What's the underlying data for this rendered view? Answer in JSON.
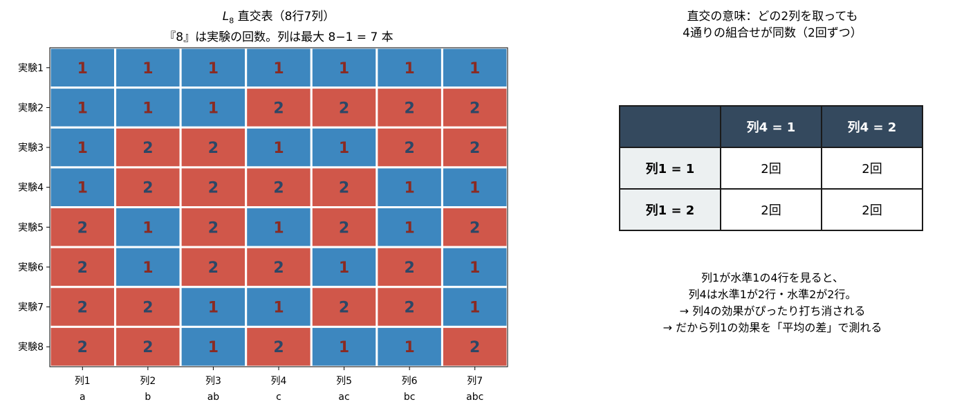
{
  "left": {
    "title_line1_italic": "L",
    "title_line1_sub": "8",
    "title_line1_rest": " 直交表（8行7列）",
    "title_line2": "『8』は実験の回数。列は最大 8−1 = 7 本"
  },
  "right": {
    "title_line1": "直交の意味：どの2列を取っても",
    "title_line2": "4通りの組合せが同数（2回ずつ）",
    "table": {
      "col_headers": [
        "列4 = 1",
        "列4 = 2"
      ],
      "rows": [
        {
          "label": "列1 = 1",
          "cells": [
            "2回",
            "2回"
          ]
        },
        {
          "label": "列1 = 2",
          "cells": [
            "2回",
            "2回"
          ]
        }
      ]
    },
    "note_lines": [
      "列1が水準1の4行を見ると、",
      "列4は水準1が2行・水準2が2行。",
      "→ 列4の効果がぴったり打ち消される",
      "→ だから列1の効果を「平均の差」で測れる"
    ]
  },
  "colors": {
    "level1": "#3d87bf",
    "level2": "#d0574a",
    "text_on_level1": "#8a2a22",
    "text_on_level2": "#2c4766",
    "header_dark": "#34495e",
    "header_light": "#ecf0f1"
  },
  "chart_data": {
    "type": "heatmap",
    "rows": [
      "実験1",
      "実験2",
      "実験3",
      "実験4",
      "実験5",
      "実験6",
      "実験7",
      "実験8"
    ],
    "columns": [
      {
        "name": "列1",
        "factor": "a"
      },
      {
        "name": "列2",
        "factor": "b"
      },
      {
        "name": "列3",
        "factor": "ab"
      },
      {
        "name": "列4",
        "factor": "c"
      },
      {
        "name": "列5",
        "factor": "ac"
      },
      {
        "name": "列6",
        "factor": "bc"
      },
      {
        "name": "列7",
        "factor": "abc"
      }
    ],
    "values": [
      [
        1,
        1,
        1,
        1,
        1,
        1,
        1
      ],
      [
        1,
        1,
        1,
        2,
        2,
        2,
        2
      ],
      [
        1,
        2,
        2,
        1,
        1,
        2,
        2
      ],
      [
        1,
        2,
        2,
        2,
        2,
        1,
        1
      ],
      [
        2,
        1,
        2,
        1,
        2,
        1,
        2
      ],
      [
        2,
        1,
        2,
        2,
        1,
        2,
        1
      ],
      [
        2,
        2,
        1,
        1,
        2,
        2,
        1
      ],
      [
        2,
        2,
        1,
        2,
        1,
        1,
        2
      ]
    ]
  }
}
